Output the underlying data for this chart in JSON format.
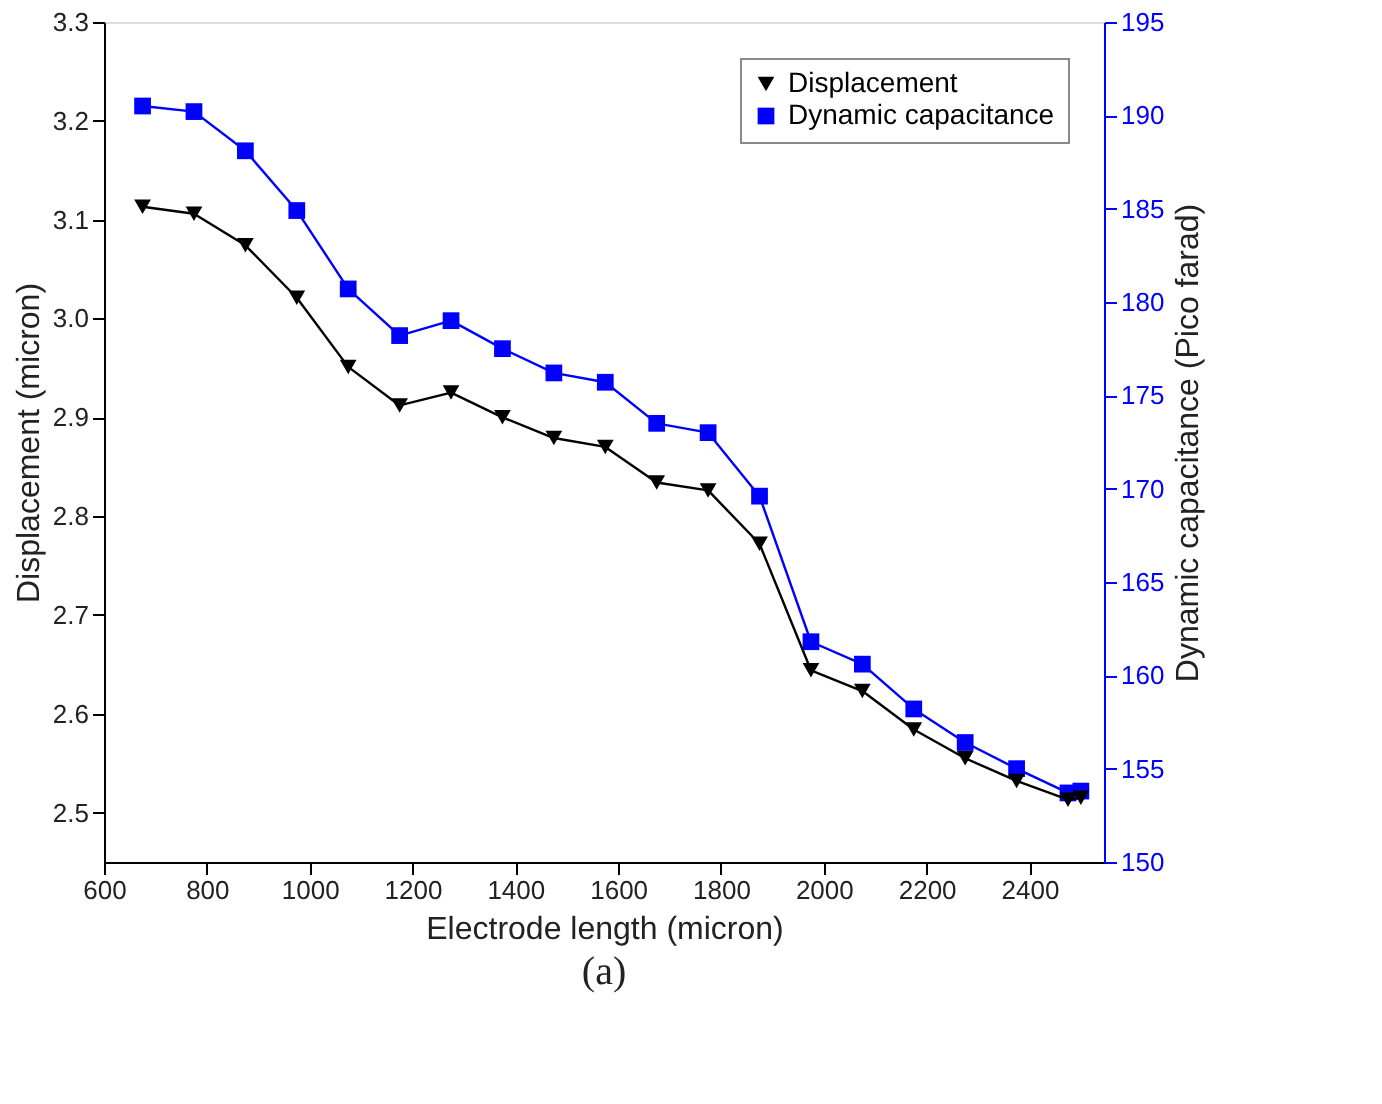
{
  "chart_data": {
    "type": "line",
    "xlabel": "Electrode length (micron)",
    "ylabel": "Displacement (micron)",
    "y2label": "Dynamic capacitance (Pico farad)",
    "x": [
      675,
      775,
      875,
      975,
      1075,
      1175,
      1275,
      1375,
      1475,
      1575,
      1675,
      1775,
      1875,
      1975,
      2075,
      2175,
      2275,
      2375,
      2475,
      2500
    ],
    "series": [
      {
        "name": "Displacement",
        "color": "#000000",
        "marker": "triangle-down",
        "axis": "y",
        "values": [
          3.113,
          3.106,
          3.074,
          3.021,
          2.951,
          2.912,
          2.925,
          2.9,
          2.879,
          2.87,
          2.834,
          2.826,
          2.772,
          2.644,
          2.623,
          2.584,
          2.555,
          2.532,
          2.513,
          2.515
        ]
      },
      {
        "name": "Dynamic capacitance",
        "color": "#0000ff",
        "marker": "square",
        "axis": "y2",
        "values": [
          190.5,
          190.2,
          188.1,
          184.9,
          180.7,
          178.2,
          179.0,
          177.5,
          176.2,
          175.7,
          173.5,
          173.0,
          169.6,
          161.8,
          160.6,
          158.2,
          156.4,
          155.0,
          153.7,
          153.8
        ]
      }
    ],
    "xlim": [
      600,
      2545
    ],
    "xticks": [
      600,
      800,
      1000,
      1200,
      1400,
      1600,
      1800,
      2000,
      2200,
      2400
    ],
    "ylim": [
      2.45,
      3.3
    ],
    "yticks": [
      2.5,
      2.6,
      2.7,
      2.8,
      2.9,
      {
        "value": 3,
        "label": "3.0"
      },
      3.1,
      3.2,
      3.3
    ],
    "y2lim": [
      150,
      195
    ],
    "y2ticks": [
      150,
      155,
      160,
      165,
      170,
      175,
      180,
      185,
      190,
      195
    ],
    "legend": "top right",
    "grid": false,
    "line_style": "solid",
    "annotations": [
      "(a)"
    ]
  }
}
